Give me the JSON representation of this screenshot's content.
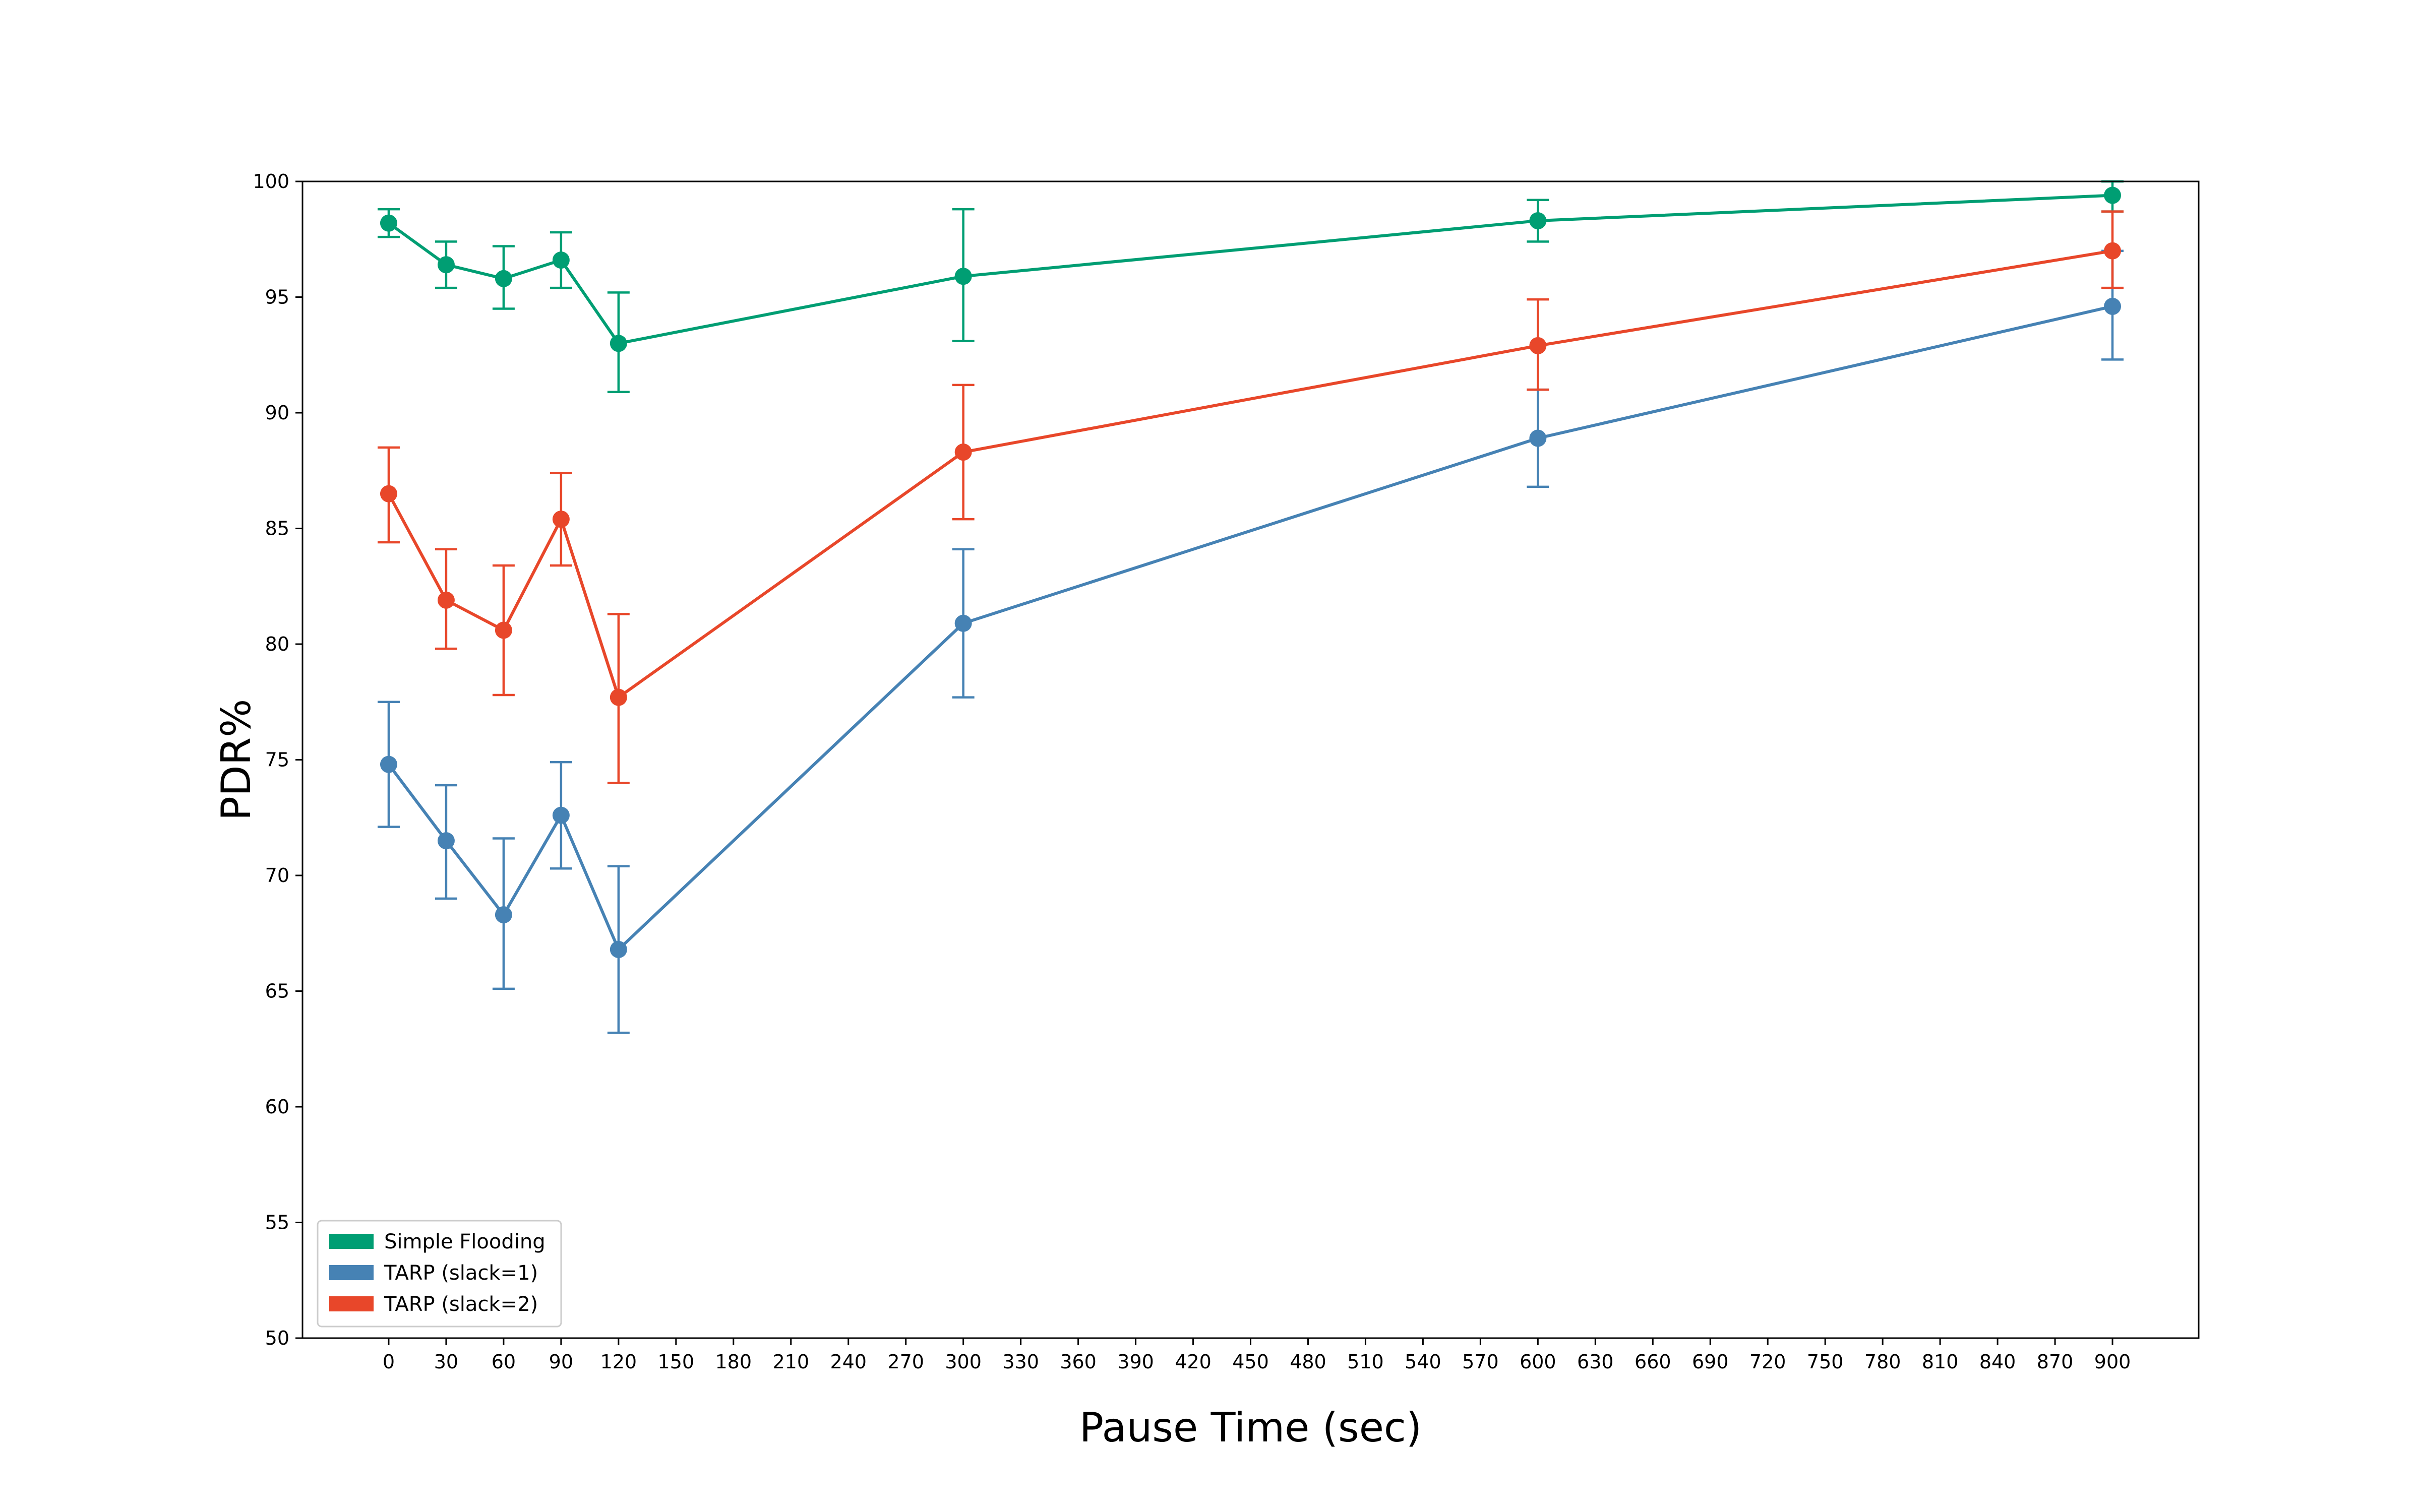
{
  "chart_data": {
    "type": "line",
    "title": "",
    "xlabel": "Pause Time (sec)",
    "ylabel": "PDR%",
    "xlim": [
      -45,
      945
    ],
    "ylim": [
      50,
      100
    ],
    "x_ticks": [
      0,
      30,
      60,
      90,
      120,
      150,
      180,
      210,
      240,
      270,
      300,
      330,
      360,
      390,
      420,
      450,
      480,
      510,
      540,
      570,
      600,
      630,
      660,
      690,
      720,
      750,
      780,
      810,
      840,
      870,
      900
    ],
    "y_ticks": [
      50,
      55,
      60,
      65,
      70,
      75,
      80,
      85,
      90,
      95,
      100
    ],
    "grid": false,
    "legend_position": "lower-left",
    "x": [
      0,
      30,
      60,
      90,
      120,
      300,
      600,
      900
    ],
    "series": [
      {
        "name": "Simple Flooding",
        "color": "#009e73",
        "values": [
          98.2,
          96.4,
          95.8,
          96.6,
          93.0,
          95.9,
          98.3,
          99.4
        ],
        "err_low": [
          97.6,
          95.4,
          94.5,
          95.4,
          90.9,
          93.1,
          97.4,
          98.7
        ],
        "err_high": [
          98.8,
          97.4,
          97.2,
          97.8,
          95.2,
          98.8,
          99.2,
          100.0
        ]
      },
      {
        "name": "TARP (slack=1)",
        "color": "#4682b4",
        "values": [
          74.8,
          71.5,
          68.3,
          72.6,
          66.8,
          80.9,
          88.9,
          94.6
        ],
        "err_low": [
          72.1,
          69.0,
          65.1,
          70.3,
          63.2,
          77.7,
          86.8,
          92.3
        ],
        "err_high": [
          77.5,
          73.9,
          71.6,
          74.9,
          70.4,
          84.1,
          91.0,
          97.0
        ]
      },
      {
        "name": "TARP (slack=2)",
        "color": "#e8472a",
        "values": [
          86.5,
          81.9,
          80.6,
          85.4,
          77.7,
          88.3,
          92.9,
          97.0
        ],
        "err_low": [
          84.4,
          79.8,
          77.8,
          83.4,
          74.0,
          85.4,
          91.0,
          95.4
        ],
        "err_high": [
          88.5,
          84.1,
          83.4,
          87.4,
          81.3,
          91.2,
          94.9,
          98.7
        ]
      }
    ]
  }
}
